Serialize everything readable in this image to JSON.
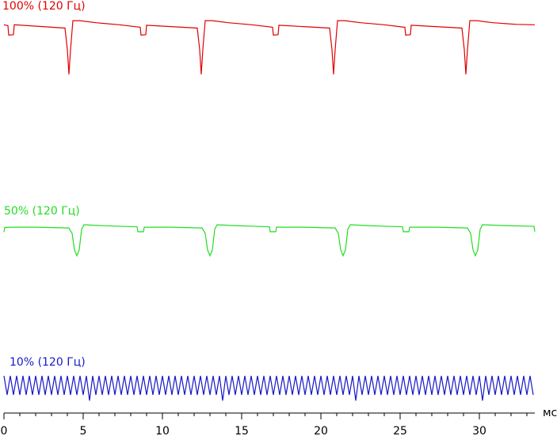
{
  "chart_data": {
    "type": "line",
    "xlabel": "мс",
    "xlim": [
      0,
      33.5
    ],
    "ylim": [
      0,
      100
    ],
    "xticks": [
      0,
      5,
      10,
      15,
      20,
      25,
      30
    ],
    "xminor": [
      0,
      1,
      2,
      3,
      4,
      5,
      6,
      7,
      8,
      9,
      10,
      11,
      12,
      13,
      14,
      15,
      16,
      17,
      18,
      19,
      20,
      21,
      22,
      23,
      24,
      25,
      26,
      27,
      28,
      29,
      30,
      31,
      32,
      33
    ],
    "series": [
      {
        "name": "100% (120 Гц)",
        "color": "#e00000",
        "x": [
          0,
          0.25,
          0.3,
          0.6,
          0.65,
          3.85,
          4,
          4.1,
          4.2,
          4.35,
          4.8,
          5.8,
          7.3,
          8.6,
          8.65,
          8.95,
          9,
          12.2,
          12.35,
          12.45,
          12.55,
          12.7,
          13.15,
          14.15,
          15.65,
          16.95,
          17,
          17.3,
          17.35,
          20.55,
          20.7,
          20.8,
          20.9,
          21.05,
          21.5,
          22.5,
          24,
          25.3,
          25.35,
          25.65,
          25.7,
          28.9,
          29.05,
          29.15,
          29.25,
          29.4,
          29.85,
          30.85,
          32.35,
          33.5
        ],
        "values": [
          94,
          93.8,
          91.5,
          91.6,
          94,
          93.2,
          88,
          82,
          88,
          95,
          95,
          94.5,
          94,
          93.4,
          91.5,
          91.6,
          93.9,
          93.2,
          88,
          82,
          88,
          95,
          95,
          94.5,
          94,
          93.4,
          91.5,
          91.6,
          93.9,
          93.2,
          88,
          82,
          88,
          95,
          95,
          94.5,
          94,
          93.4,
          91.5,
          91.6,
          93.9,
          93.2,
          88,
          82,
          88,
          95,
          95,
          94.5,
          94.1,
          94
        ]
      },
      {
        "name": "50% (120 Гц)",
        "color": "#22dd22",
        "x": [
          0,
          0.05,
          0.4,
          2,
          4.1,
          4.3,
          4.45,
          4.6,
          4.75,
          4.9,
          5.05,
          6,
          7.5,
          8.4,
          8.45,
          8.8,
          8.85,
          10.5,
          12.5,
          12.7,
          12.85,
          13,
          13.15,
          13.3,
          13.45,
          14.4,
          15.9,
          16.75,
          16.8,
          17.15,
          17.2,
          18.9,
          20.9,
          21.1,
          21.25,
          21.4,
          21.55,
          21.7,
          21.85,
          22.8,
          24.3,
          25.15,
          25.2,
          25.55,
          25.6,
          27.3,
          29.25,
          29.45,
          29.6,
          29.75,
          29.9,
          30.05,
          30.2,
          31.5,
          33.45,
          33.5
        ],
        "values": [
          43.8,
          44.9,
          45,
          45,
          44.8,
          43.5,
          39.5,
          38.1,
          39.5,
          44.5,
          45.6,
          45.4,
          45.2,
          45.1,
          43.9,
          43.9,
          45,
          45,
          44.8,
          43.5,
          39.5,
          38.1,
          39.5,
          44.5,
          45.6,
          45.4,
          45.2,
          45.1,
          43.9,
          43.9,
          45,
          45,
          44.8,
          43.5,
          39.5,
          38.1,
          39.5,
          44.5,
          45.6,
          45.4,
          45.2,
          45.1,
          43.9,
          43.9,
          45,
          45,
          44.8,
          43.5,
          39.5,
          38.1,
          39.5,
          44.5,
          45.6,
          45.4,
          45.2,
          43.9
        ]
      },
      {
        "name": "10% (120 Гц)",
        "color": "#1818c8",
        "x": [
          0,
          0.2,
          0.4,
          0.6,
          0.8,
          1,
          1.2,
          1.4,
          1.6,
          1.8,
          2,
          2.2,
          2.4,
          2.6,
          2.8,
          3,
          3.2,
          3.4,
          3.6,
          3.8,
          4,
          4.2,
          4.4,
          4.6,
          4.8,
          5,
          5.2,
          5.4,
          5.6,
          5.8,
          6,
          6.2,
          6.4,
          6.6,
          6.8,
          7,
          7.2,
          7.4,
          7.6,
          7.8,
          8,
          8.2,
          8.4,
          8.6,
          8.8,
          9,
          9.2,
          9.4,
          9.6,
          9.8,
          10,
          10.2,
          10.4,
          10.6,
          10.8,
          11,
          11.2,
          11.4,
          11.6,
          11.8,
          12,
          12.2,
          12.4,
          12.6,
          12.8,
          13,
          13.2,
          13.4,
          13.6,
          13.8,
          14,
          14.2,
          14.4,
          14.6,
          14.8,
          15,
          15.2,
          15.4,
          15.6,
          15.8,
          16,
          16.2,
          16.4,
          16.6,
          16.8,
          17,
          17.2,
          17.4,
          17.6,
          17.8,
          18,
          18.2,
          18.4,
          18.6,
          18.8,
          19,
          19.2,
          19.4,
          19.6,
          19.8,
          20,
          20.2,
          20.4,
          20.6,
          20.8,
          21,
          21.2,
          21.4,
          21.6,
          21.8,
          22,
          22.2,
          22.4,
          22.6,
          22.8,
          23,
          23.2,
          23.4,
          23.6,
          23.8,
          24,
          24.2,
          24.4,
          24.6,
          24.8,
          25,
          25.2,
          25.4,
          25.6,
          25.8,
          26,
          26.2,
          26.4,
          26.6,
          26.8,
          27,
          27.2,
          27.4,
          27.6,
          27.8,
          28,
          28.2,
          28.4,
          28.6,
          28.8,
          29,
          29.2,
          29.4,
          29.6,
          29.8,
          30,
          30.2,
          30.4,
          30.6,
          30.8,
          31,
          31.2,
          31.4,
          31.6,
          31.8,
          32,
          32.2,
          32.4,
          32.6,
          32.8,
          33,
          33.2,
          33.4
        ],
        "values": [
          9,
          4.4,
          9,
          4.4,
          9,
          4.4,
          9,
          4.4,
          9,
          4.4,
          9,
          4.4,
          9,
          4.4,
          9,
          4.4,
          9,
          4.4,
          9,
          4.4,
          9,
          4.4,
          9,
          4.4,
          9,
          4.4,
          9,
          3,
          9,
          4.4,
          9,
          4.4,
          9,
          4.4,
          9,
          4.4,
          9,
          4.4,
          9,
          4.4,
          9,
          4.4,
          9,
          4.4,
          9,
          4.4,
          9,
          4.4,
          9,
          4.4,
          9,
          4.4,
          9,
          4.4,
          9,
          4.4,
          9,
          4.4,
          9,
          4.4,
          9,
          4.4,
          9,
          4.4,
          9,
          4.4,
          9,
          4.4,
          9,
          3,
          9,
          4.4,
          9,
          4.4,
          9,
          4.4,
          9,
          4.4,
          9,
          4.4,
          9,
          4.4,
          9,
          4.4,
          9,
          4.4,
          9,
          4.4,
          9,
          4.4,
          9,
          4.4,
          9,
          4.4,
          9,
          4.4,
          9,
          4.4,
          9,
          4.4,
          9,
          4.4,
          9,
          4.4,
          9,
          4.4,
          9,
          4.4,
          9,
          4.4,
          9,
          3,
          9,
          4.4,
          9,
          4.4,
          9,
          4.4,
          9,
          4.4,
          9,
          4.4,
          9,
          4.4,
          9,
          4.4,
          9,
          4.4,
          9,
          4.4,
          9,
          4.4,
          9,
          4.4,
          9,
          4.4,
          9,
          4.4,
          9,
          4.4,
          9,
          4.4,
          9,
          4.4,
          9,
          4.4,
          9,
          4.4,
          9,
          4.4,
          9,
          3,
          9,
          4.4,
          9,
          4.4,
          9,
          4.4,
          9,
          4.4,
          9,
          4.4,
          9,
          4.4,
          9,
          4.4,
          9,
          4.4
        ]
      }
    ]
  }
}
